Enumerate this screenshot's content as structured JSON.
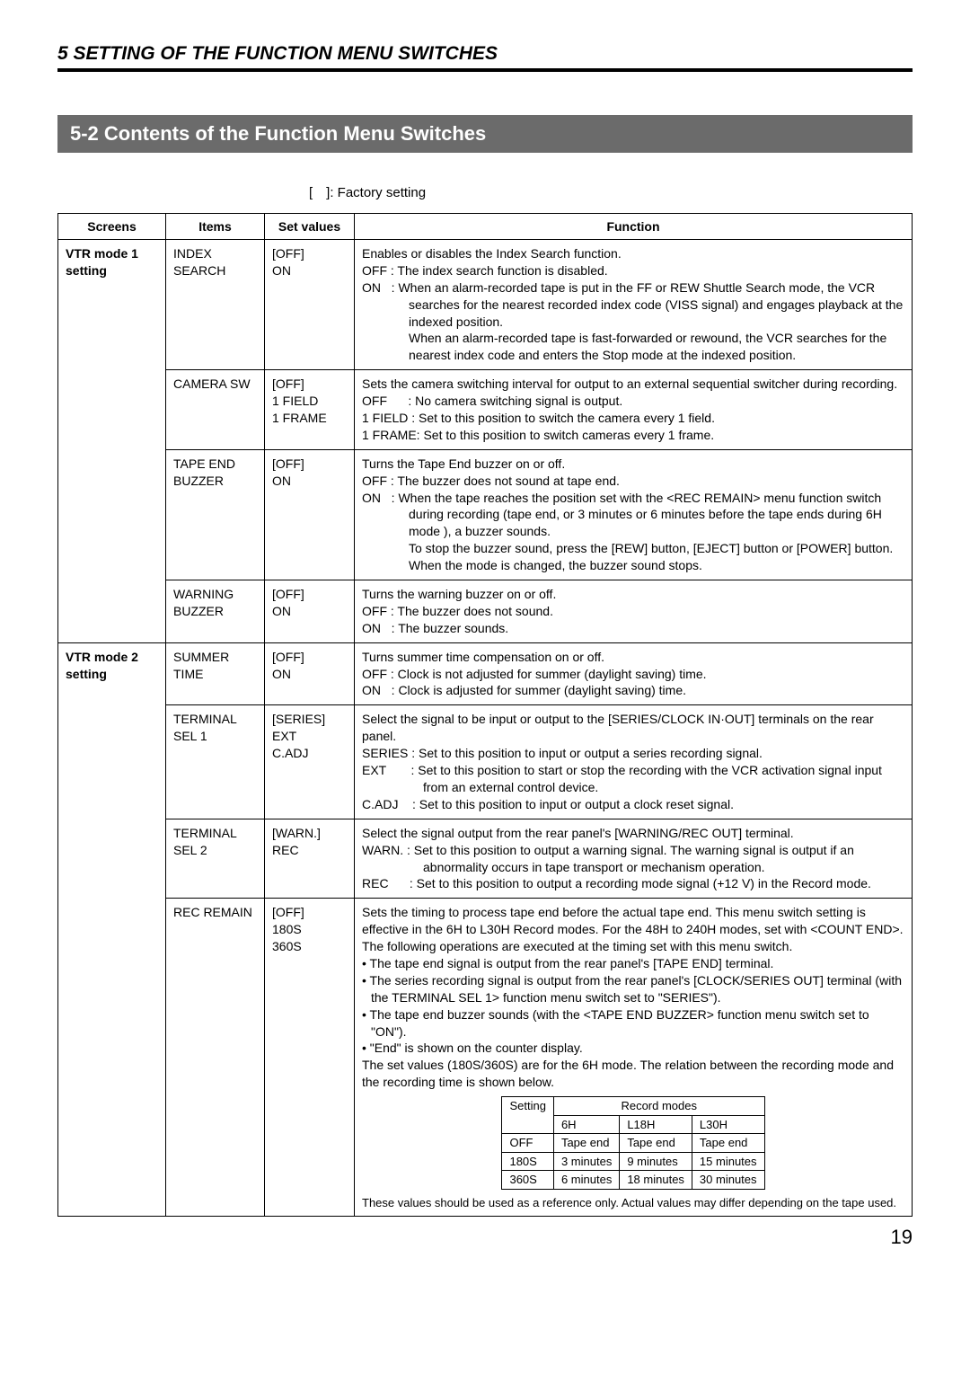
{
  "chapter": {
    "number": "5",
    "title": "SETTING OF THE FUNCTION MENU SWITCHES"
  },
  "section": {
    "number": "5-2",
    "title": "Contents of the Function Menu Switches"
  },
  "factory_note": "[ ]: Factory setting",
  "headers": {
    "screens": "Screens",
    "items": "Items",
    "set_values": "Set values",
    "function": "Function"
  },
  "rows": [
    {
      "screen": "VTR mode 1 setting",
      "item": "INDEX SEARCH",
      "values": "[OFF]\nON",
      "func_lines": [
        {
          "t": "Enables or disables the Index Search function."
        },
        {
          "t": "OFF : The index search function is disabled.",
          "cls": "hang"
        },
        {
          "t": "ON   : When an alarm-recorded tape is put in the FF or REW Shuttle Search mode, the VCR searches for the nearest recorded index code (VISS signal) and engages playback at the indexed position.",
          "cls": "hang"
        },
        {
          "t": "When an alarm-recorded tape is fast-forwarded or rewound, the VCR searches for the nearest index code and enters the Stop mode at the indexed position.",
          "cls": "hang",
          "pad_only": true
        }
      ]
    },
    {
      "item": "CAMERA SW",
      "values": "[OFF]\n1 FIELD\n1 FRAME",
      "func_lines": [
        {
          "t": "Sets the camera switching interval for output to an external sequential switcher during recording."
        },
        {
          "t": "OFF      : No camera switching signal is output.",
          "cls": "hang-wide"
        },
        {
          "t": "1 FIELD : Set to this position to switch the camera every 1 field.",
          "cls": "hang-wide"
        },
        {
          "t": "1 FRAME: Set to this position to switch cameras every 1 frame.",
          "cls": "hang-wide"
        }
      ]
    },
    {
      "item": "TAPE END BUZZER",
      "values": "[OFF]\nON",
      "func_lines": [
        {
          "t": "Turns the Tape End buzzer on or off."
        },
        {
          "t": "OFF : The buzzer does not sound at tape end.",
          "cls": "hang"
        },
        {
          "t": "ON   : When the tape reaches the position set with the <REC REMAIN> menu function switch during recording (tape end, or 3 minutes or 6 minutes before the tape ends during 6H mode ), a buzzer sounds.",
          "cls": "hang"
        },
        {
          "t": "To stop the buzzer sound, press the [REW] button, [EJECT] button or [POWER] button.",
          "cls": "hang",
          "pad_only": true
        },
        {
          "t": "When the mode is changed, the buzzer sound stops.",
          "cls": "hang",
          "pad_only": true
        }
      ]
    },
    {
      "item": "WARNING BUZZER",
      "values": "[OFF]\nON",
      "func_lines": [
        {
          "t": "Turns the warning buzzer on or off."
        },
        {
          "t": "OFF : The buzzer does not sound.",
          "cls": "hang"
        },
        {
          "t": "ON   : The buzzer sounds.",
          "cls": "hang"
        }
      ]
    },
    {
      "screen": "VTR mode 2 setting",
      "item": "SUMMER TIME",
      "values": "[OFF]\nON",
      "func_lines": [
        {
          "t": "Turns summer time compensation on or off."
        },
        {
          "t": "OFF : Clock is not adjusted for summer (daylight saving) time.",
          "cls": "hang"
        },
        {
          "t": "ON   : Clock is adjusted for summer (daylight saving) time.",
          "cls": "hang"
        }
      ]
    },
    {
      "item": "TERMINAL SEL 1",
      "values": "[SERIES]\nEXT\nC.ADJ",
      "func_lines": [
        {
          "t": "Select the signal to be input or output to the [SERIES/CLOCK IN·OUT] terminals on the rear panel."
        },
        {
          "t": "SERIES : Set to this position to input or output a series recording signal.",
          "cls": "hang-wide"
        },
        {
          "t": "EXT       : Set to this position to start or stop the recording with the VCR activation signal input from an external control device.",
          "cls": "hang-wide"
        },
        {
          "t": "C.ADJ    : Set to this position to input or output a clock reset signal.",
          "cls": "hang-wide"
        }
      ]
    },
    {
      "item": "TERMINAL SEL 2",
      "values": "[WARN.]\nREC",
      "func_lines": [
        {
          "t": "Select the signal output from the rear panel's [WARNING/REC OUT] terminal."
        },
        {
          "t": "WARN. : Set to this position to output a warning signal.  The warning signal is output if an abnormality occurs in tape transport or mechanism operation.",
          "cls": "hang-wide"
        },
        {
          "t": "REC      : Set to this position to output a recording mode signal (+12 V) in the Record mode.",
          "cls": "hang-wide"
        }
      ]
    },
    {
      "item": "REC REMAIN",
      "values": "[OFF]\n180S\n360S",
      "func_lines": [
        {
          "t": "Sets the timing to process tape end before the actual tape end.  This menu switch setting is effective in the 6H to L30H Record modes.  For the 48H to 240H modes, set with <COUNT END>.  The following operations are executed at the timing set with this menu switch."
        },
        {
          "t": "• The tape end signal is output from the rear panel's [TAPE END] terminal.",
          "cls": "bullet"
        },
        {
          "t": "• The series recording signal is output from the rear panel's [CLOCK/SERIES OUT] terminal (with the TERMINAL SEL 1> function menu switch set to \"SERIES\").",
          "cls": "bullet"
        },
        {
          "t": "• The tape end buzzer sounds (with the <TAPE END BUZZER> function menu switch set to \"ON\").",
          "cls": "bullet"
        },
        {
          "t": "• \"End\" is shown on the counter display.",
          "cls": "bullet"
        },
        {
          "t": "The set values (180S/360S) are for the 6H mode.  The relation between the recording mode and the recording time is shown below."
        }
      ],
      "inner_table": {
        "col1_header": "Setting",
        "span_header": "Record modes",
        "mode_cols": [
          "6H",
          "L18H",
          "L30H"
        ],
        "rows": [
          [
            "OFF",
            "Tape end",
            "Tape end",
            "Tape end"
          ],
          [
            "180S",
            "3 minutes",
            "9 minutes",
            "15 minutes"
          ],
          [
            "360S",
            "6 minutes",
            "18 minutes",
            "30 minutes"
          ]
        ]
      },
      "inner_caption": "These values should be used as a reference only. Actual values may differ depending on the tape used."
    }
  ],
  "page_number": "19"
}
